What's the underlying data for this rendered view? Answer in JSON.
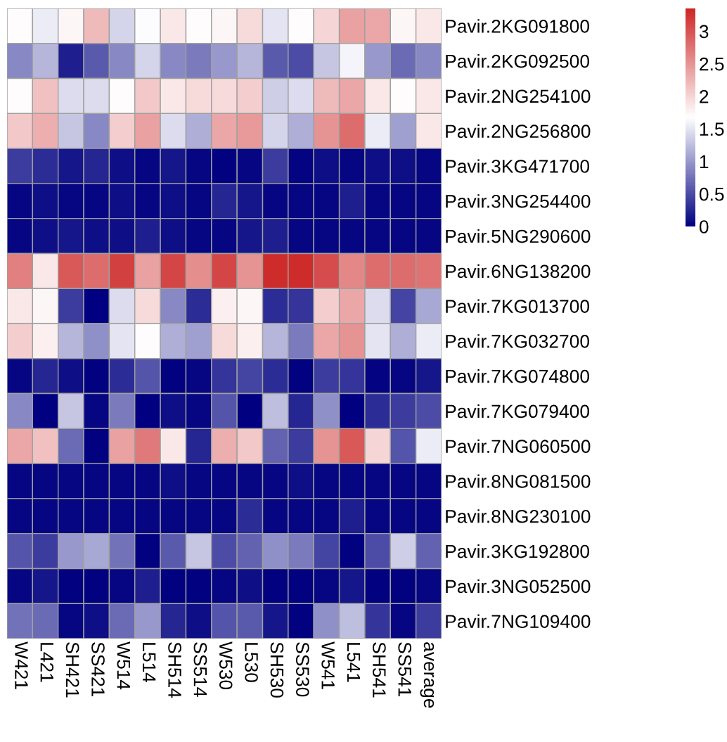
{
  "chart_data": {
    "type": "heatmap",
    "categories": [
      "W421",
      "L421",
      "SH421",
      "SS421",
      "W514",
      "L514",
      "SH514",
      "SS514",
      "W530",
      "L530",
      "SH530",
      "SS530",
      "W541",
      "L541",
      "SH541",
      "SS541",
      "average"
    ],
    "y_categories": [
      "Pavir.2KG091800",
      "Pavir.2KG092500",
      "Pavir.2NG254100",
      "Pavir.2NG256800",
      "Pavir.3KG471700",
      "Pavir.3NG254400",
      "Pavir.5NG290600",
      "Pavir.6NG138200",
      "Pavir.7KG013700",
      "Pavir.7KG032700",
      "Pavir.7KG074800",
      "Pavir.7KG079400",
      "Pavir.7NG060500",
      "Pavir.8NG081500",
      "Pavir.8NG230100",
      "Pavir.3KG192800",
      "Pavir.3NG052500",
      "Pavir.7NG109400"
    ],
    "cells": [
      [
        1.7,
        1.55,
        1.75,
        2.2,
        1.4,
        1.65,
        1.85,
        1.7,
        1.75,
        1.95,
        1.5,
        1.7,
        2.0,
        2.4,
        2.35,
        1.75,
        1.85
      ],
      [
        0.9,
        1.2,
        0.2,
        0.6,
        0.9,
        1.4,
        0.9,
        0.8,
        1.0,
        1.2,
        0.6,
        0.5,
        1.3,
        1.6,
        1.0,
        0.7,
        0.9
      ],
      [
        1.7,
        2.15,
        1.45,
        1.45,
        1.7,
        2.1,
        1.85,
        1.95,
        1.95,
        2.05,
        1.35,
        1.45,
        2.2,
        2.35,
        1.85,
        1.7,
        1.85
      ],
      [
        2.1,
        2.3,
        1.3,
        0.9,
        2.05,
        2.4,
        1.45,
        1.15,
        2.35,
        2.45,
        1.4,
        1.15,
        2.5,
        2.8,
        1.55,
        1.05,
        1.85
      ],
      [
        0.4,
        0.3,
        0.15,
        0.25,
        0.1,
        0.05,
        0.15,
        0.05,
        0.02,
        0.05,
        0.4,
        0.03,
        0.1,
        0.05,
        0.1,
        0.1,
        0.05
      ],
      [
        0.05,
        0.1,
        0.05,
        0.05,
        0.1,
        0.05,
        0.1,
        0.05,
        0.25,
        0.15,
        0.05,
        0.05,
        0.05,
        0.2,
        0.05,
        0.05,
        0.05
      ],
      [
        0.05,
        0.1,
        0.15,
        0.1,
        0.1,
        0.2,
        0.1,
        0.05,
        0.05,
        0.15,
        0.2,
        0.05,
        0.05,
        0.05,
        0.05,
        0.05,
        0.05
      ],
      [
        2.65,
        1.85,
        2.95,
        2.8,
        3.15,
        2.4,
        3.1,
        2.55,
        3.1,
        2.5,
        3.3,
        3.3,
        3.05,
        2.6,
        2.8,
        2.8,
        2.75
      ],
      [
        1.85,
        1.75,
        0.4,
        0.0,
        1.45,
        1.95,
        0.9,
        0.3,
        1.8,
        1.75,
        0.3,
        0.35,
        2.05,
        2.35,
        1.45,
        0.45,
        1.1
      ],
      [
        2.05,
        1.8,
        1.2,
        0.95,
        1.5,
        1.7,
        1.15,
        1.05,
        1.95,
        1.8,
        1.2,
        0.8,
        2.35,
        2.5,
        1.5,
        1.15,
        1.55
      ],
      [
        0.05,
        0.25,
        0.1,
        0.02,
        0.3,
        0.55,
        0.02,
        0.05,
        0.35,
        0.45,
        0.3,
        0.02,
        0.4,
        0.35,
        0.03,
        0.05,
        0.15
      ],
      [
        0.9,
        0.0,
        1.3,
        0.05,
        0.8,
        0.0,
        0.1,
        0.05,
        0.55,
        0.0,
        1.25,
        0.25,
        0.95,
        0.0,
        0.3,
        0.4,
        0.5
      ],
      [
        2.35,
        2.15,
        0.7,
        0.02,
        2.4,
        2.7,
        1.85,
        0.25,
        2.3,
        2.1,
        0.65,
        0.4,
        2.5,
        2.95,
        2.0,
        0.55,
        1.55
      ],
      [
        0.05,
        0.05,
        0.05,
        0.05,
        0.05,
        0.05,
        0.1,
        0.05,
        0.05,
        0.05,
        0.05,
        0.1,
        0.05,
        0.05,
        0.05,
        0.05,
        0.05
      ],
      [
        0.05,
        0.05,
        0.05,
        0.05,
        0.05,
        0.05,
        0.05,
        0.05,
        0.05,
        0.3,
        0.05,
        0.05,
        0.05,
        0.2,
        0.05,
        0.05,
        0.05
      ],
      [
        0.55,
        0.4,
        1.0,
        1.1,
        0.75,
        0.02,
        0.6,
        1.3,
        0.5,
        0.65,
        0.95,
        0.8,
        0.45,
        0.02,
        0.5,
        1.35,
        0.65
      ],
      [
        0.05,
        0.15,
        0.02,
        0.02,
        0.05,
        0.2,
        0.02,
        0.02,
        0.05,
        0.1,
        0.02,
        0.02,
        0.05,
        0.15,
        0.02,
        0.02,
        0.05
      ],
      [
        0.75,
        0.7,
        0.05,
        0.1,
        0.7,
        1.0,
        0.25,
        0.1,
        0.55,
        0.6,
        0.15,
        0.02,
        0.95,
        1.25,
        0.35,
        0.05,
        0.4
      ]
    ],
    "clim": [
      0,
      3.35
    ],
    "cticks": [
      0,
      0.5,
      1,
      1.5,
      2,
      2.5,
      3
    ]
  }
}
